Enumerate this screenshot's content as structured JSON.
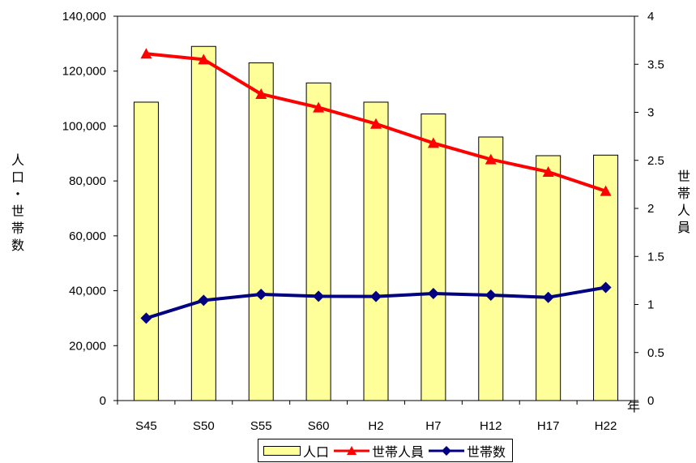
{
  "chart_data": {
    "type": "bar-line-combo",
    "categories": [
      "S45",
      "S50",
      "S55",
      "S60",
      "H2",
      "H7",
      "H12",
      "H17",
      "H22"
    ],
    "series": [
      {
        "name": "人口",
        "type": "bar",
        "axis": "left",
        "color": "#ffff99",
        "values": [
          108700,
          129000,
          123000,
          115700,
          108700,
          104400,
          96000,
          89200,
          89400
        ]
      },
      {
        "name": "世帯人員",
        "type": "line",
        "axis": "right",
        "color": "#ff0000",
        "marker": "triangle",
        "values": [
          3.61,
          3.55,
          3.19,
          3.05,
          2.88,
          2.68,
          2.51,
          2.38,
          2.18
        ]
      },
      {
        "name": "世帯数",
        "type": "line",
        "axis": "left",
        "color": "#000080",
        "marker": "diamond",
        "values": [
          30000,
          36500,
          38700,
          38000,
          37900,
          39000,
          38400,
          37600,
          41200
        ]
      }
    ],
    "y_left": {
      "label": "人口・世帯数",
      "min": 0,
      "max": 140000,
      "ticks": [
        "0",
        "20,000",
        "40,000",
        "60,000",
        "80,000",
        "100,000",
        "120,000",
        "140,000"
      ]
    },
    "y_right": {
      "label": "世帯人員",
      "min": 0,
      "max": 4,
      "ticks": [
        "0",
        "0.5",
        "1",
        "1.5",
        "2",
        "2.5",
        "3",
        "3.5",
        "4"
      ]
    },
    "x_unit": "年",
    "legend": {
      "position": "bottom",
      "entries": [
        {
          "label": "人口"
        },
        {
          "label": "世帯人員"
        },
        {
          "label": "世帯数"
        }
      ]
    }
  }
}
